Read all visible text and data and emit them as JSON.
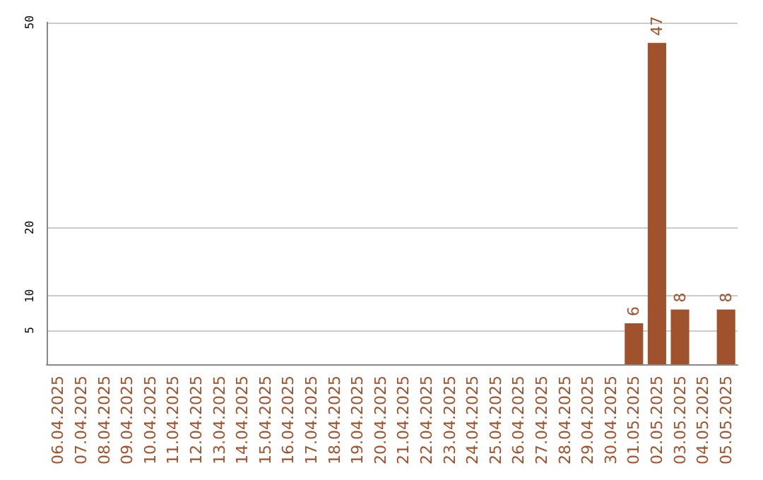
{
  "chart_data": {
    "type": "bar",
    "categories": [
      "06.04.2025",
      "07.04.2025",
      "08.04.2025",
      "09.04.2025",
      "10.04.2025",
      "11.04.2025",
      "12.04.2025",
      "13.04.2025",
      "14.04.2025",
      "15.04.2025",
      "16.04.2025",
      "17.04.2025",
      "18.04.2025",
      "19.04.2025",
      "20.04.2025",
      "21.04.2025",
      "22.04.2025",
      "23.04.2025",
      "24.04.2025",
      "25.04.2025",
      "26.04.2025",
      "27.04.2025",
      "28.04.2025",
      "29.04.2025",
      "30.04.2025",
      "01.05.2025",
      "02.05.2025",
      "03.05.2025",
      "04.05.2025",
      "05.05.2025"
    ],
    "values": [
      0,
      0,
      0,
      0,
      0,
      0,
      0,
      0,
      0,
      0,
      0,
      0,
      0,
      0,
      0,
      0,
      0,
      0,
      0,
      0,
      0,
      0,
      0,
      0,
      0,
      6,
      47,
      8,
      0,
      8
    ],
    "value_labels": [
      null,
      null,
      null,
      null,
      null,
      null,
      null,
      null,
      null,
      null,
      null,
      null,
      null,
      null,
      null,
      null,
      null,
      null,
      null,
      null,
      null,
      null,
      null,
      null,
      null,
      "6",
      "47",
      "8",
      null,
      "8"
    ],
    "color": "#a0522d",
    "ylim": [
      0,
      50
    ],
    "yticks": [
      5,
      10,
      20,
      50
    ],
    "grid": "y"
  }
}
